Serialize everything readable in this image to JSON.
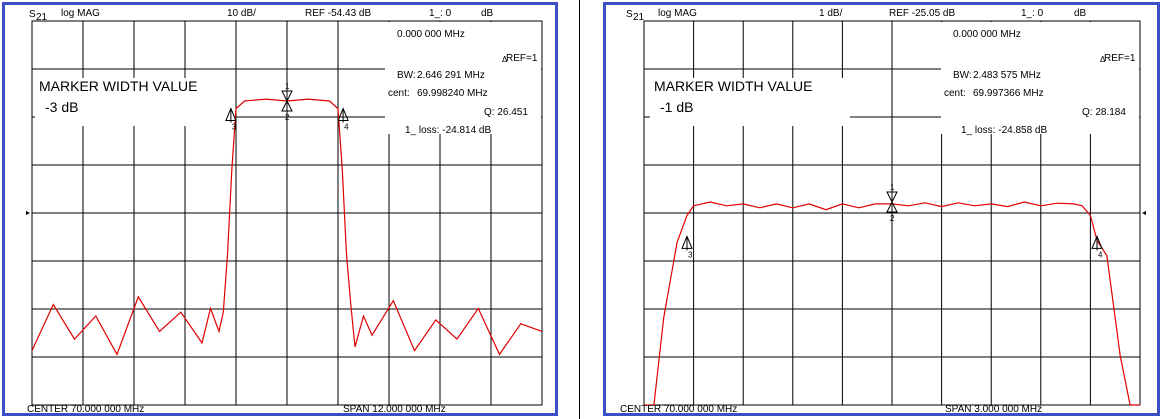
{
  "chart_data": [
    {
      "type": "line",
      "header": {
        "param_main": "S",
        "param_sub": "21",
        "format": "log MAG",
        "scale": "10 dB/",
        "ref": "REF -54.43 dB",
        "marker": "1_: 0",
        "unit": "dB"
      },
      "ref_line_level": 4,
      "trace_color": "#e00000",
      "title": "MARKER WIDTH VALUE",
      "subtitle": "-3 dB",
      "readouts": {
        "freq": "0.000 000 MHz",
        "ref": "REF=1",
        "bw_label": "BW:",
        "bw": "2.646 291 MHz",
        "cent_label": "cent:",
        "cent": "69.998240 MHz",
        "q": "Q: 26.451",
        "loss": "1_ loss: -24.814 dB"
      },
      "footer": {
        "center": "CENTER  70.000 000 MHz",
        "span": "SPAN   12.000 000 MHz"
      },
      "center_mhz": 70,
      "span_mhz": 12,
      "ylim": [
        -8,
        2
      ],
      "x": [
        -6,
        -5.5,
        -5,
        -4.5,
        -4,
        -3.5,
        -3,
        -2.5,
        -2,
        -1.8,
        -1.6,
        -1.5,
        -1.4,
        -1.3,
        -1.2,
        -1,
        -0.5,
        0,
        0.5,
        1,
        1.2,
        1.3,
        1.4,
        1.5,
        1.6,
        1.8,
        2,
        2.5,
        3,
        3.5,
        4,
        4.5,
        5,
        5.5,
        6
      ],
      "values": [
        -6.5,
        -5.3,
        -6.2,
        -5.6,
        -6.6,
        -5.1,
        -6.0,
        -5.5,
        -6.3,
        -5.4,
        -6.0,
        -5.5,
        -4.0,
        -1.8,
        -0.2,
        0.0,
        0.05,
        0.0,
        0.05,
        0.0,
        -0.2,
        -1.8,
        -4.0,
        -5.3,
        -6.4,
        -5.6,
        -6.1,
        -5.2,
        -6.5,
        -5.7,
        -6.2,
        -5.4,
        -6.6,
        -5.8,
        -6.0
      ],
      "markers": [
        {
          "label": "1",
          "x": 0,
          "y": 0
        },
        {
          "label": "2",
          "x": 0,
          "y": 0
        },
        {
          "label": "3",
          "x": -1.32,
          "y": -0.3
        },
        {
          "label": "4",
          "x": 1.32,
          "y": -0.3
        }
      ]
    },
    {
      "type": "line",
      "header": {
        "param_main": "S",
        "param_sub": "21",
        "format": "log MAG",
        "scale": "1 dB/",
        "ref": "REF -25.05 dB",
        "marker": "1_: 0",
        "unit": "dB"
      },
      "ref_line_level": 4,
      "trace_color": "#e00000",
      "title": "MARKER WIDTH VALUE",
      "subtitle": "-1 dB",
      "readouts": {
        "freq": "0.000 000 MHz",
        "ref": "REF=1",
        "bw_label": "BW:",
        "bw": "2.483 575 MHz",
        "cent_label": "cent:",
        "cent": "69.997366 MHz",
        "q": "Q: 28.184",
        "loss": "1_ loss: -24.858 dB"
      },
      "footer": {
        "center": "CENTER  70.000 000 MHz",
        "span": "SPAN   3.000 000 MHz"
      },
      "center_mhz": 70,
      "span_mhz": 3,
      "ylim": [
        -6,
        4
      ],
      "x": [
        -1.5,
        -1.44,
        -1.38,
        -1.3,
        -1.24,
        -1.2,
        -1.15,
        -1.1,
        -1.0,
        -0.9,
        -0.8,
        -0.7,
        -0.6,
        -0.5,
        -0.4,
        -0.3,
        -0.2,
        -0.1,
        0,
        0.1,
        0.2,
        0.3,
        0.4,
        0.5,
        0.6,
        0.7,
        0.8,
        0.9,
        1.0,
        1.1,
        1.15,
        1.2,
        1.24,
        1.3,
        1.38,
        1.44,
        1.5
      ],
      "values": [
        -6,
        -6,
        -3.0,
        -1.05,
        -0.35,
        -0.1,
        -0.05,
        0.0,
        -0.1,
        -0.05,
        -0.15,
        -0.05,
        -0.15,
        -0.05,
        -0.2,
        -0.05,
        -0.15,
        -0.05,
        -0.05,
        -0.1,
        -0.02,
        -0.12,
        -0.02,
        -0.1,
        -0.05,
        -0.12,
        0.0,
        -0.1,
        -0.03,
        -0.05,
        -0.1,
        -0.35,
        -1.0,
        -1.4,
        -4.0,
        -6,
        -6
      ],
      "markers": [
        {
          "label": "1",
          "x": 0,
          "y": 0
        },
        {
          "label": "2",
          "x": 0,
          "y": 0
        },
        {
          "label": "3",
          "x": -1.24,
          "y": -1.0
        },
        {
          "label": "4",
          "x": 1.24,
          "y": -1.0
        }
      ]
    }
  ]
}
